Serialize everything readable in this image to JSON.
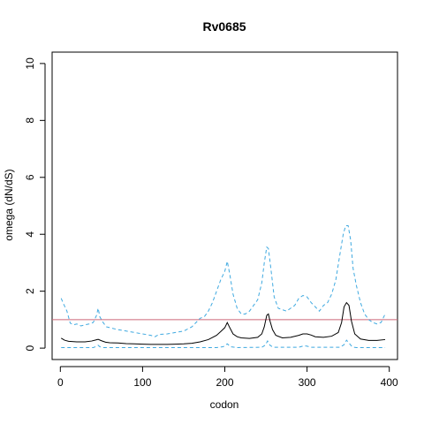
{
  "chart_data": {
    "type": "line",
    "title": "Rv0685",
    "xlabel": "codon",
    "ylabel": "omega (dN/dS)",
    "xlim": [
      -10,
      410
    ],
    "ylim": [
      -0.4,
      10.4
    ],
    "xticks": [
      0,
      100,
      200,
      300,
      400
    ],
    "yticks": [
      0,
      2,
      4,
      6,
      8,
      10
    ],
    "grid": false,
    "reference_line": {
      "y": 1,
      "color": "#cc6677"
    },
    "colors": {
      "mean": "#000000",
      "upper": "#3fa9e0",
      "lower": "#3fa9e0"
    },
    "series": [
      {
        "style": "solid",
        "points": [
          [
            1,
            0.35
          ],
          [
            5,
            0.28
          ],
          [
            10,
            0.24
          ],
          [
            20,
            0.22
          ],
          [
            30,
            0.22
          ],
          [
            38,
            0.25
          ],
          [
            42,
            0.28
          ],
          [
            46,
            0.31
          ],
          [
            50,
            0.26
          ],
          [
            55,
            0.21
          ],
          [
            60,
            0.19
          ],
          [
            70,
            0.18
          ],
          [
            80,
            0.16
          ],
          [
            90,
            0.15
          ],
          [
            100,
            0.14
          ],
          [
            110,
            0.13
          ],
          [
            120,
            0.13
          ],
          [
            130,
            0.13
          ],
          [
            140,
            0.14
          ],
          [
            150,
            0.15
          ],
          [
            160,
            0.17
          ],
          [
            170,
            0.22
          ],
          [
            180,
            0.3
          ],
          [
            190,
            0.45
          ],
          [
            195,
            0.58
          ],
          [
            200,
            0.72
          ],
          [
            203,
            0.9
          ],
          [
            206,
            0.72
          ],
          [
            210,
            0.5
          ],
          [
            215,
            0.4
          ],
          [
            220,
            0.36
          ],
          [
            230,
            0.34
          ],
          [
            240,
            0.38
          ],
          [
            245,
            0.5
          ],
          [
            248,
            0.75
          ],
          [
            251,
            1.15
          ],
          [
            253,
            1.2
          ],
          [
            255,
            0.95
          ],
          [
            258,
            0.65
          ],
          [
            262,
            0.45
          ],
          [
            270,
            0.36
          ],
          [
            280,
            0.38
          ],
          [
            290,
            0.45
          ],
          [
            295,
            0.5
          ],
          [
            300,
            0.5
          ],
          [
            305,
            0.46
          ],
          [
            310,
            0.4
          ],
          [
            320,
            0.38
          ],
          [
            330,
            0.42
          ],
          [
            338,
            0.55
          ],
          [
            342,
            0.9
          ],
          [
            345,
            1.45
          ],
          [
            348,
            1.6
          ],
          [
            351,
            1.5
          ],
          [
            354,
            0.95
          ],
          [
            358,
            0.5
          ],
          [
            365,
            0.32
          ],
          [
            375,
            0.27
          ],
          [
            385,
            0.27
          ],
          [
            395,
            0.3
          ]
        ]
      },
      {
        "style": "dashed",
        "points": [
          [
            1,
            1.75
          ],
          [
            4,
            1.55
          ],
          [
            8,
            1.3
          ],
          [
            12,
            0.88
          ],
          [
            16,
            0.82
          ],
          [
            20,
            0.85
          ],
          [
            25,
            0.78
          ],
          [
            30,
            0.82
          ],
          [
            35,
            0.85
          ],
          [
            40,
            0.9
          ],
          [
            44,
            1.15
          ],
          [
            46,
            1.4
          ],
          [
            48,
            1.1
          ],
          [
            52,
            0.9
          ],
          [
            56,
            0.75
          ],
          [
            60,
            0.72
          ],
          [
            70,
            0.65
          ],
          [
            80,
            0.6
          ],
          [
            90,
            0.55
          ],
          [
            100,
            0.5
          ],
          [
            110,
            0.45
          ],
          [
            115,
            0.4
          ],
          [
            120,
            0.48
          ],
          [
            130,
            0.5
          ],
          [
            140,
            0.55
          ],
          [
            150,
            0.6
          ],
          [
            160,
            0.75
          ],
          [
            170,
            1.05
          ],
          [
            175,
            1.1
          ],
          [
            180,
            1.3
          ],
          [
            185,
            1.6
          ],
          [
            190,
            2.0
          ],
          [
            195,
            2.4
          ],
          [
            200,
            2.7
          ],
          [
            203,
            3.05
          ],
          [
            206,
            2.6
          ],
          [
            210,
            1.9
          ],
          [
            215,
            1.4
          ],
          [
            220,
            1.2
          ],
          [
            225,
            1.2
          ],
          [
            230,
            1.3
          ],
          [
            235,
            1.5
          ],
          [
            240,
            1.7
          ],
          [
            245,
            2.3
          ],
          [
            248,
            3.0
          ],
          [
            251,
            3.55
          ],
          [
            253,
            3.5
          ],
          [
            256,
            2.8
          ],
          [
            260,
            1.8
          ],
          [
            265,
            1.4
          ],
          [
            270,
            1.35
          ],
          [
            275,
            1.3
          ],
          [
            280,
            1.4
          ],
          [
            285,
            1.5
          ],
          [
            290,
            1.75
          ],
          [
            295,
            1.85
          ],
          [
            300,
            1.8
          ],
          [
            305,
            1.6
          ],
          [
            310,
            1.45
          ],
          [
            315,
            1.3
          ],
          [
            320,
            1.5
          ],
          [
            325,
            1.6
          ],
          [
            330,
            1.9
          ],
          [
            335,
            2.4
          ],
          [
            340,
            3.3
          ],
          [
            344,
            4.0
          ],
          [
            347,
            4.3
          ],
          [
            350,
            4.3
          ],
          [
            353,
            3.8
          ],
          [
            356,
            2.8
          ],
          [
            360,
            2.2
          ],
          [
            365,
            1.6
          ],
          [
            370,
            1.2
          ],
          [
            375,
            1.0
          ],
          [
            380,
            0.9
          ],
          [
            385,
            0.85
          ],
          [
            390,
            0.9
          ],
          [
            395,
            1.2
          ]
        ]
      },
      {
        "style": "dashed",
        "points": [
          [
            1,
            0.02
          ],
          [
            10,
            0.02
          ],
          [
            20,
            0.02
          ],
          [
            40,
            0.02
          ],
          [
            44,
            0.06
          ],
          [
            46,
            0.1
          ],
          [
            48,
            0.05
          ],
          [
            52,
            0.02
          ],
          [
            100,
            0.02
          ],
          [
            150,
            0.02
          ],
          [
            190,
            0.02
          ],
          [
            198,
            0.05
          ],
          [
            203,
            0.15
          ],
          [
            207,
            0.05
          ],
          [
            215,
            0.02
          ],
          [
            245,
            0.03
          ],
          [
            249,
            0.1
          ],
          [
            252,
            0.25
          ],
          [
            255,
            0.1
          ],
          [
            259,
            0.03
          ],
          [
            290,
            0.03
          ],
          [
            296,
            0.08
          ],
          [
            300,
            0.07
          ],
          [
            305,
            0.03
          ],
          [
            340,
            0.03
          ],
          [
            345,
            0.12
          ],
          [
            348,
            0.28
          ],
          [
            351,
            0.18
          ],
          [
            355,
            0.04
          ],
          [
            360,
            0.02
          ],
          [
            395,
            0.02
          ]
        ]
      }
    ]
  }
}
